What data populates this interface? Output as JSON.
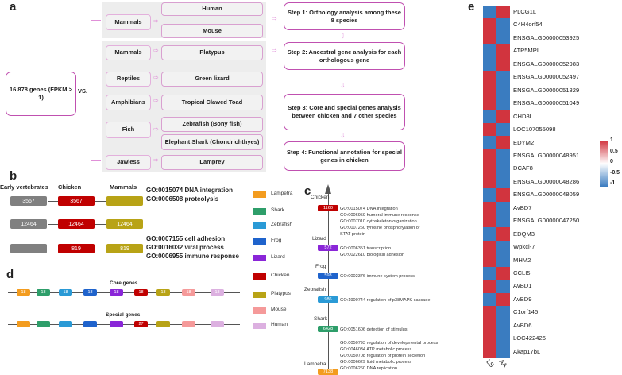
{
  "panel_labels": {
    "a": "a",
    "b": "b",
    "c": "c",
    "d": "d",
    "e": "e"
  },
  "a": {
    "genes_box": "16,878 genes (FPKM > 1)",
    "vs": "VS.",
    "categories": [
      "Mammals",
      "Mammals",
      "Reptiles",
      "Amphibians",
      "Fish",
      "Jawless"
    ],
    "species": [
      "Human",
      "Mouse",
      "Platypus",
      "Green lizard",
      "Tropical Clawed Toad",
      "Zebrafish (Bony fish)",
      "Elephant Shark (Chondrichthyes)",
      "Lamprey"
    ],
    "steps": [
      "Step 1:  Orthology analysis among these 8 species",
      "Step 2: Ancestral gene analysis for each orthologous gene",
      "Step 3: Core and special genes analysis between chicken and 7 other species",
      "Step 4: Functional annotation for special genes in chicken"
    ]
  },
  "b": {
    "headers": [
      "Early vertebrates",
      "Chicken",
      "Mammals"
    ],
    "rows": [
      {
        "values": [
          "3567",
          "3567",
          ""
        ],
        "go": [
          "GO:0015074 DNA integration",
          "GO:0006508 proteolysis"
        ]
      },
      {
        "values": [
          "12464",
          "12464",
          "12464"
        ],
        "go": []
      },
      {
        "values": [
          "",
          "819",
          "819"
        ],
        "go": [
          "GO:0007155 cell adhesion",
          "GO:0016032 viral process",
          "GO:0006955 immune response"
        ]
      }
    ],
    "colors": [
      "#808080",
      "#c00000",
      "#b8a316"
    ]
  },
  "legend": [
    {
      "name": "Lampetra",
      "color": "#f39c1f"
    },
    {
      "name": "Shark",
      "color": "#2e9e6a"
    },
    {
      "name": "Zebrafish",
      "color": "#2a9ad6"
    },
    {
      "name": "Frog",
      "color": "#1f63cc"
    },
    {
      "name": "Lizard",
      "color": "#8a26d8"
    },
    {
      "name": "Chicken",
      "color": "#c00000"
    },
    {
      "name": "Platypus",
      "color": "#b8a316"
    },
    {
      "name": "Mouse",
      "color": "#f59a9a"
    },
    {
      "name": "Human",
      "color": "#dcb0e0"
    }
  ],
  "c": {
    "nodes": [
      {
        "name": "Chicken",
        "value": "1160",
        "color": "#c00000",
        "go": [
          "GO:0015074 DNA integration",
          "GO:0006959 humoral immune response",
          "GO:0007010 cytoskeleton organization",
          "GO:0007260 tyrosine phosphorylation of",
          "STAT protein"
        ]
      },
      {
        "name": "Lizard",
        "value": "572",
        "color": "#8a26d8",
        "go": [
          "GO:0006351 transcription",
          "GO:0022610 biological adhesion"
        ]
      },
      {
        "name": "Frog",
        "value": "593",
        "color": "#1f63cc",
        "go": [
          "GO:0002376 immune system process"
        ]
      },
      {
        "name": "Zebrafish",
        "value": "986",
        "color": "#2a9ad6",
        "go": [
          "GO:1900744 regulation of p38MAPK cascade"
        ]
      },
      {
        "name": "Shark",
        "value": "6428",
        "color": "#2e9e6a",
        "go": [
          "GO:0051606 detection of stimulus"
        ]
      },
      {
        "name": "Lampetra",
        "value": "7138",
        "color": "#f39c1f",
        "go": [
          "GO:0050793 regulation of developmental process",
          "GO:0046034 ATP metabolic process",
          "GO:0050708 regulation of protein secretion",
          "GO:0006629 lipid metabolic process",
          "GO:0006260 DNA replication"
        ]
      }
    ]
  },
  "d": {
    "core_label": "Core genes",
    "special_label": "Special genes",
    "core": [
      "18",
      "18",
      "18",
      "18",
      "18",
      "18",
      "18",
      "18",
      "18"
    ],
    "special": [
      "",
      "",
      "",
      "",
      "",
      "27",
      "",
      "",
      ""
    ]
  },
  "e": {
    "columns": [
      "LS",
      "AA"
    ],
    "colors": {
      "high": "#d1343e",
      "low": "#3a7cc0"
    },
    "colorbar": [
      "1",
      "0.5",
      "0",
      "-0.5",
      "-1"
    ],
    "genes": [
      "PLCG1L",
      "C4H4orf54",
      "ENSGALG00000053925",
      "ATP5MPL",
      "ENSGALG00000052983",
      "ENSGALG00000052497",
      "ENSGALG00000051829",
      "ENSGALG00000051049",
      "CHD8L",
      "LOC107055098",
      "EDYM2",
      "ENSGALG00000048951",
      "DCAF8",
      "ENSGALG00000048286",
      "ENSGALG00000048059",
      "AvBD7",
      "ENSGALG00000047250",
      "EDQM3",
      "Wpkci-7",
      "MHM2",
      "CCLI5",
      "AvBD1",
      "AvBD9",
      "C1orf145",
      "AvBD6",
      "LOC422426",
      "Akap17bL"
    ],
    "LS": [
      -1,
      1,
      1,
      -1,
      -1,
      1,
      1,
      1,
      -1,
      1,
      -1,
      1,
      1,
      1,
      -1,
      1,
      1,
      -1,
      1,
      1,
      -1,
      1,
      -1,
      1,
      1,
      1,
      1
    ],
    "AA": [
      1,
      -1,
      -1,
      1,
      1,
      -1,
      -1,
      -1,
      1,
      -1,
      1,
      -1,
      -1,
      -1,
      1,
      -1,
      -1,
      1,
      -1,
      -1,
      1,
      -1,
      1,
      -1,
      -1,
      -1,
      -1
    ]
  }
}
